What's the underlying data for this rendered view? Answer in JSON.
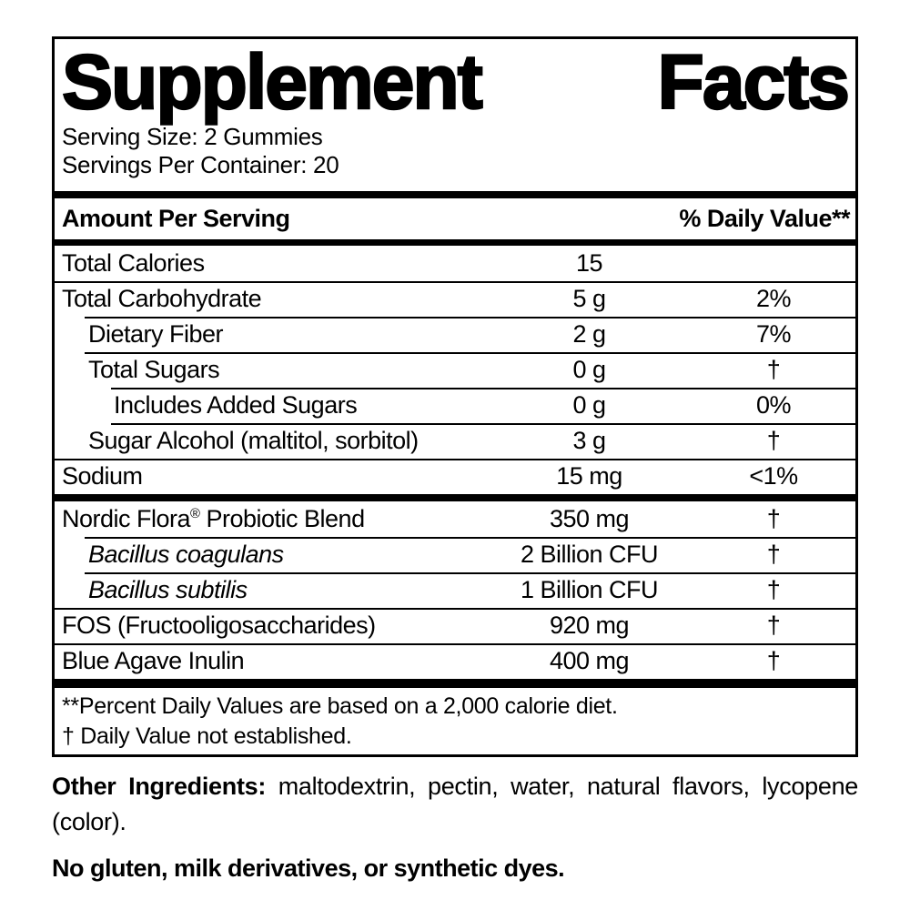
{
  "colors": {
    "ink": "#000000",
    "background": "#ffffff"
  },
  "panel": {
    "title": "Supplement Facts",
    "serving_size": "Serving Size: 2 Gummies",
    "servings_per_container": "Servings Per Container: 20",
    "column_header": {
      "amount_label": "Amount Per Serving",
      "dv_label": "% Daily Value**"
    },
    "rows": [
      {
        "name": "Total Calories",
        "amount": "15",
        "dv": ""
      },
      {
        "name": "Total Carbohydrate",
        "amount": "5 g",
        "dv": "2%"
      },
      {
        "name": "Dietary Fiber",
        "amount": "2 g",
        "dv": "7%"
      },
      {
        "name": "Total Sugars",
        "amount": "0 g",
        "dv": "†"
      },
      {
        "name": "Includes Added Sugars",
        "amount": "0 g",
        "dv": "0%"
      },
      {
        "name": "Sugar Alcohol (maltitol, sorbitol)",
        "amount": "3 g",
        "dv": "†"
      },
      {
        "name": "Sodium",
        "amount": "15 mg",
        "dv": "<1%"
      },
      {
        "name_pre": "Nordic Flora",
        "name_sup": "®",
        "name_post": " Probiotic Blend",
        "amount": "350 mg",
        "dv": "†"
      },
      {
        "name": "Bacillus coagulans",
        "amount": "2 Billion CFU",
        "dv": "†"
      },
      {
        "name": "Bacillus subtilis",
        "amount": "1 Billion CFU",
        "dv": "†"
      },
      {
        "name": "FOS (Fructooligosaccharides)",
        "amount": "920 mg",
        "dv": "†"
      },
      {
        "name": "Blue Agave Inulin",
        "amount": "400 mg",
        "dv": "†"
      }
    ],
    "footnotes": [
      "**Percent Daily Values are based on a 2,000 calorie diet.",
      "† Daily Value not established."
    ]
  },
  "other_ingredients": {
    "label": "Other Ingredients:",
    "text": "maltodextrin, pectin, water, natural flavors, lycopene (color)."
  },
  "claim": "No gluten, milk derivatives, or synthetic dyes."
}
